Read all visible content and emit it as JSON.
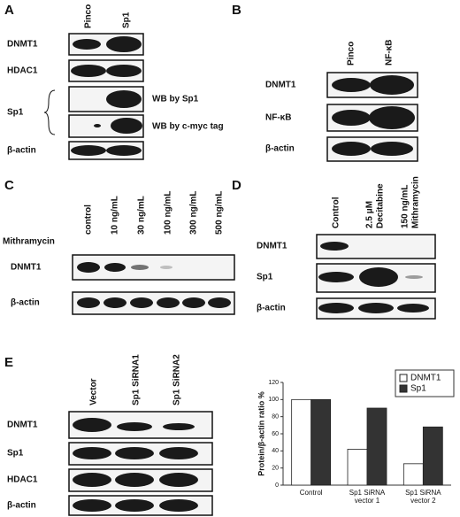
{
  "panels": {
    "A": {
      "letter": "A",
      "lanes": [
        "Pinco",
        "Sp1"
      ],
      "rows": [
        "DNMT1",
        "HDAC1",
        "Sp1",
        "β-actin"
      ],
      "notes": [
        "WB by Sp1",
        "WB by c-myc tag"
      ]
    },
    "B": {
      "letter": "B",
      "lanes": [
        "Pinco",
        "NF-κB"
      ],
      "rows": [
        "DNMT1",
        "NF-κB",
        "β-actin"
      ]
    },
    "C": {
      "letter": "C",
      "lanes": [
        "control",
        "10 ng/mL",
        "30 ng/mL",
        "100 ng/mL",
        "300 ng/mL",
        "500 ng/mL"
      ],
      "treatment": "Mithramycin",
      "rows": [
        "DNMT1",
        "β-actin"
      ]
    },
    "D": {
      "letter": "D",
      "lanes": [
        [
          "Control"
        ],
        [
          "2.5 μM",
          "Decitabine"
        ],
        [
          "150 ng/mL",
          "Mithramycin"
        ]
      ],
      "rows": [
        "DNMT1",
        "Sp1",
        "β-actin"
      ]
    },
    "E": {
      "letter": "E",
      "lanes": [
        "Vector",
        "Sp1 SiRNA1",
        "Sp1 SiRNA2"
      ],
      "rows": [
        "DNMT1",
        "Sp1",
        "HDAC1",
        "β-actin"
      ]
    }
  },
  "chart_data": {
    "type": "bar",
    "y_label": "Protein/β-actin ratio %",
    "categories": [
      "Control",
      "Sp1 SiRNA\nvector 1",
      "Sp1 SiRNA\nvector 2"
    ],
    "series": [
      {
        "name": "DNMT1",
        "color": "#ffffff",
        "values": [
          100,
          42,
          25
        ]
      },
      {
        "name": "Sp1",
        "color": "#333333",
        "values": [
          100,
          90,
          68
        ]
      }
    ],
    "ylim": [
      0,
      120
    ],
    "yticks": [
      0,
      20,
      40,
      60,
      80,
      100,
      120
    ],
    "legend": "upper right"
  }
}
